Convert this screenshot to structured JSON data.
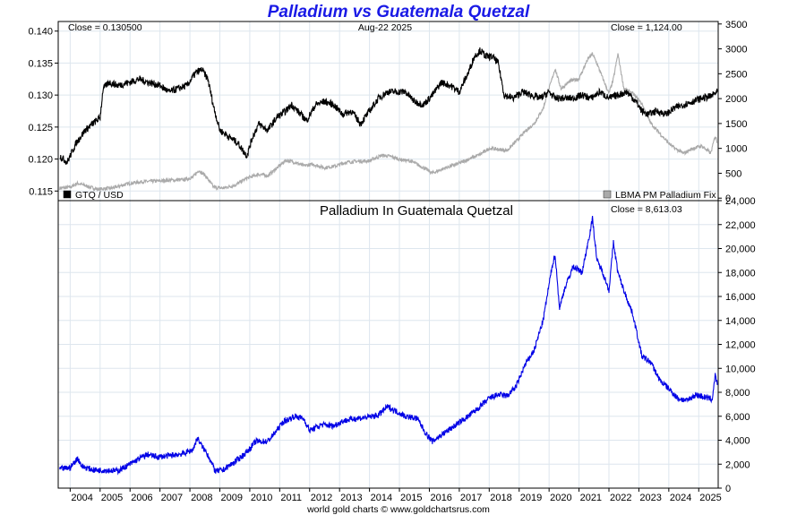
{
  "title": "Palladium vs Guatemala Quetzal",
  "footer": "world gold charts © www.goldchartsrus.com",
  "date_label": "Aug-22  2025",
  "colors": {
    "title": "#1a1ae6",
    "gtq": "#000000",
    "palladium": "#aaaaaa",
    "pd_in_gtq": "#0000e6",
    "grid": "#dde6ee"
  },
  "chart_data": [
    {
      "type": "line",
      "panel": "top",
      "close_left": "Close = 0.130500",
      "close_right": "Close = 1,124.00",
      "x_ticks": [
        "2004",
        "2005",
        "2006",
        "2007",
        "2008",
        "2009",
        "2010",
        "2011",
        "2012",
        "2013",
        "2014",
        "2015",
        "2016",
        "2017",
        "2018",
        "2019",
        "2020",
        "2021",
        "2022",
        "2023",
        "2024",
        "2025"
      ],
      "xlim": [
        2003.6,
        2025.65
      ],
      "y_left": {
        "ticks": [
          "0.140",
          "0.135",
          "0.130",
          "0.125",
          "0.120",
          "0.115"
        ],
        "lim": [
          0.1135,
          0.1415
        ]
      },
      "y_right": {
        "ticks": [
          "3500",
          "3000",
          "2500",
          "2000",
          "1500",
          "1000",
          "500",
          "0"
        ],
        "lim": [
          -50,
          3550
        ]
      },
      "series": [
        {
          "name": "GTQ / USD",
          "axis": "left",
          "x": [
            2003.65,
            2003.9,
            2004.2,
            2004.5,
            2004.75,
            2005.0,
            2005.1,
            2005.3,
            2005.6,
            2006.0,
            2006.3,
            2006.6,
            2007.0,
            2007.3,
            2007.6,
            2007.9,
            2008.2,
            2008.4,
            2008.6,
            2008.8,
            2009.0,
            2009.3,
            2009.6,
            2009.9,
            2010.1,
            2010.3,
            2010.6,
            2010.9,
            2011.2,
            2011.4,
            2011.6,
            2011.9,
            2012.2,
            2012.5,
            2012.8,
            2013.1,
            2013.4,
            2013.7,
            2014.0,
            2014.3,
            2014.6,
            2014.9,
            2015.2,
            2015.5,
            2015.8,
            2016.1,
            2016.4,
            2016.7,
            2017.0,
            2017.3,
            2017.5,
            2017.7,
            2017.9,
            2018.1,
            2018.3,
            2018.5,
            2018.8,
            2019.1,
            2019.4,
            2019.7,
            2020.0,
            2020.2,
            2020.5,
            2020.8,
            2021.1,
            2021.4,
            2021.7,
            2022.0,
            2022.3,
            2022.6,
            2022.9,
            2023.1,
            2023.3,
            2023.6,
            2023.9,
            2024.2,
            2024.5,
            2024.8,
            2025.1,
            2025.4,
            2025.62
          ],
          "values": [
            0.1205,
            0.1195,
            0.1225,
            0.1245,
            0.1255,
            0.1265,
            0.131,
            0.132,
            0.1315,
            0.132,
            0.1325,
            0.132,
            0.1315,
            0.1305,
            0.131,
            0.1315,
            0.1335,
            0.134,
            0.1325,
            0.128,
            0.1245,
            0.1235,
            0.1225,
            0.1205,
            0.1235,
            0.1255,
            0.1245,
            0.1265,
            0.1275,
            0.1285,
            0.1275,
            0.126,
            0.1285,
            0.129,
            0.1285,
            0.127,
            0.1275,
            0.1255,
            0.1275,
            0.1295,
            0.1305,
            0.1305,
            0.1305,
            0.129,
            0.1285,
            0.13,
            0.132,
            0.1315,
            0.1305,
            0.1335,
            0.136,
            0.137,
            0.136,
            0.136,
            0.135,
            0.13,
            0.1295,
            0.1305,
            0.13,
            0.1295,
            0.1305,
            0.1295,
            0.1295,
            0.1295,
            0.13,
            0.1295,
            0.1305,
            0.1295,
            0.13,
            0.1305,
            0.129,
            0.1275,
            0.127,
            0.1275,
            0.127,
            0.128,
            0.1285,
            0.129,
            0.1295,
            0.1298,
            0.1305
          ]
        },
        {
          "name": "LBMA PM Palladium Fix",
          "axis": "right",
          "x": [
            2003.65,
            2004.0,
            2004.25,
            2004.5,
            2004.9,
            2005.4,
            2006.0,
            2006.4,
            2006.8,
            2007.3,
            2007.8,
            2008.1,
            2008.3,
            2008.5,
            2008.8,
            2009.1,
            2009.5,
            2009.9,
            2010.3,
            2010.6,
            2010.9,
            2011.2,
            2011.5,
            2011.8,
            2012.1,
            2012.5,
            2012.9,
            2013.2,
            2013.6,
            2014.0,
            2014.4,
            2014.7,
            2015.0,
            2015.4,
            2015.9,
            2016.1,
            2016.5,
            2016.9,
            2017.3,
            2017.7,
            2018.0,
            2018.3,
            2018.6,
            2018.9,
            2019.2,
            2019.5,
            2019.8,
            2020.1,
            2020.2,
            2020.4,
            2020.7,
            2021.0,
            2021.3,
            2021.45,
            2021.6,
            2021.8,
            2022.0,
            2022.15,
            2022.3,
            2022.5,
            2022.8,
            2023.1,
            2023.4,
            2023.7,
            2024.0,
            2024.2,
            2024.5,
            2024.8,
            2025.1,
            2025.4,
            2025.55,
            2025.62
          ],
          "values": [
            200,
            220,
            300,
            250,
            180,
            200,
            300,
            330,
            340,
            360,
            370,
            420,
            560,
            460,
            220,
            200,
            260,
            400,
            480,
            450,
            600,
            760,
            720,
            650,
            680,
            610,
            650,
            720,
            740,
            750,
            860,
            840,
            780,
            740,
            580,
            500,
            600,
            680,
            780,
            880,
            1000,
            980,
            960,
            1140,
            1340,
            1500,
            1800,
            2400,
            2600,
            2200,
            2350,
            2400,
            2800,
            2900,
            2700,
            2400,
            2100,
            2400,
            2900,
            2200,
            2100,
            1900,
            1500,
            1300,
            1100,
            1000,
            900,
            1000,
            1050,
            900,
            1250,
            1124
          ]
        }
      ]
    },
    {
      "type": "line",
      "panel": "bottom",
      "title": "Palladium In Guatemala Quetzal",
      "close_right": "Close = 8,613.03",
      "x_ticks": [
        "2004",
        "2005",
        "2006",
        "2007",
        "2008",
        "2009",
        "2010",
        "2011",
        "2012",
        "2013",
        "2014",
        "2015",
        "2016",
        "2017",
        "2018",
        "2019",
        "2020",
        "2021",
        "2022",
        "2023",
        "2024",
        "2025"
      ],
      "xlim": [
        2003.6,
        2025.65
      ],
      "y_right": {
        "ticks": [
          "24,000",
          "22,000",
          "20,000",
          "18,000",
          "16,000",
          "14,000",
          "12,000",
          "10,000",
          "8,000",
          "6,000",
          "4,000",
          "2,000",
          "0"
        ],
        "lim": [
          0,
          24000
        ]
      },
      "series": [
        {
          "name": "Palladium In Guatemala Quetzal",
          "x": [
            2003.65,
            2004.0,
            2004.25,
            2004.4,
            2004.8,
            2005.2,
            2005.6,
            2006.0,
            2006.4,
            2006.6,
            2006.9,
            2007.3,
            2007.8,
            2008.1,
            2008.25,
            2008.4,
            2008.6,
            2008.85,
            2009.1,
            2009.5,
            2009.9,
            2010.2,
            2010.6,
            2010.9,
            2011.1,
            2011.5,
            2011.8,
            2012.0,
            2012.4,
            2012.8,
            2013.1,
            2013.5,
            2013.9,
            2014.3,
            2014.6,
            2014.9,
            2015.2,
            2015.6,
            2015.9,
            2016.1,
            2016.5,
            2016.9,
            2017.3,
            2017.7,
            2018.0,
            2018.3,
            2018.6,
            2018.9,
            2019.2,
            2019.5,
            2019.8,
            2020.1,
            2020.2,
            2020.35,
            2020.5,
            2020.8,
            2021.1,
            2021.3,
            2021.45,
            2021.6,
            2021.8,
            2022.0,
            2022.15,
            2022.3,
            2022.5,
            2022.8,
            2023.1,
            2023.4,
            2023.7,
            2024.0,
            2024.3,
            2024.6,
            2024.9,
            2025.2,
            2025.45,
            2025.55,
            2025.62
          ],
          "values": [
            1600,
            1700,
            2500,
            1800,
            1500,
            1500,
            1450,
            2000,
            2600,
            2800,
            2600,
            2700,
            2900,
            3200,
            4200,
            3500,
            2800,
            1400,
            1500,
            2200,
            3000,
            3900,
            3900,
            4800,
            5500,
            6000,
            5800,
            4800,
            5300,
            5200,
            5600,
            5800,
            5900,
            6100,
            6800,
            6400,
            6000,
            5800,
            4500,
            3900,
            4600,
            5300,
            6000,
            6800,
            7500,
            7800,
            7700,
            8500,
            10300,
            11500,
            14000,
            18500,
            19500,
            15000,
            16500,
            18500,
            18000,
            20500,
            22500,
            19000,
            18000,
            16500,
            20500,
            18000,
            16500,
            14500,
            11000,
            10500,
            9000,
            8300,
            7500,
            7300,
            7800,
            7600,
            7400,
            9500,
            8613
          ]
        }
      ]
    }
  ]
}
